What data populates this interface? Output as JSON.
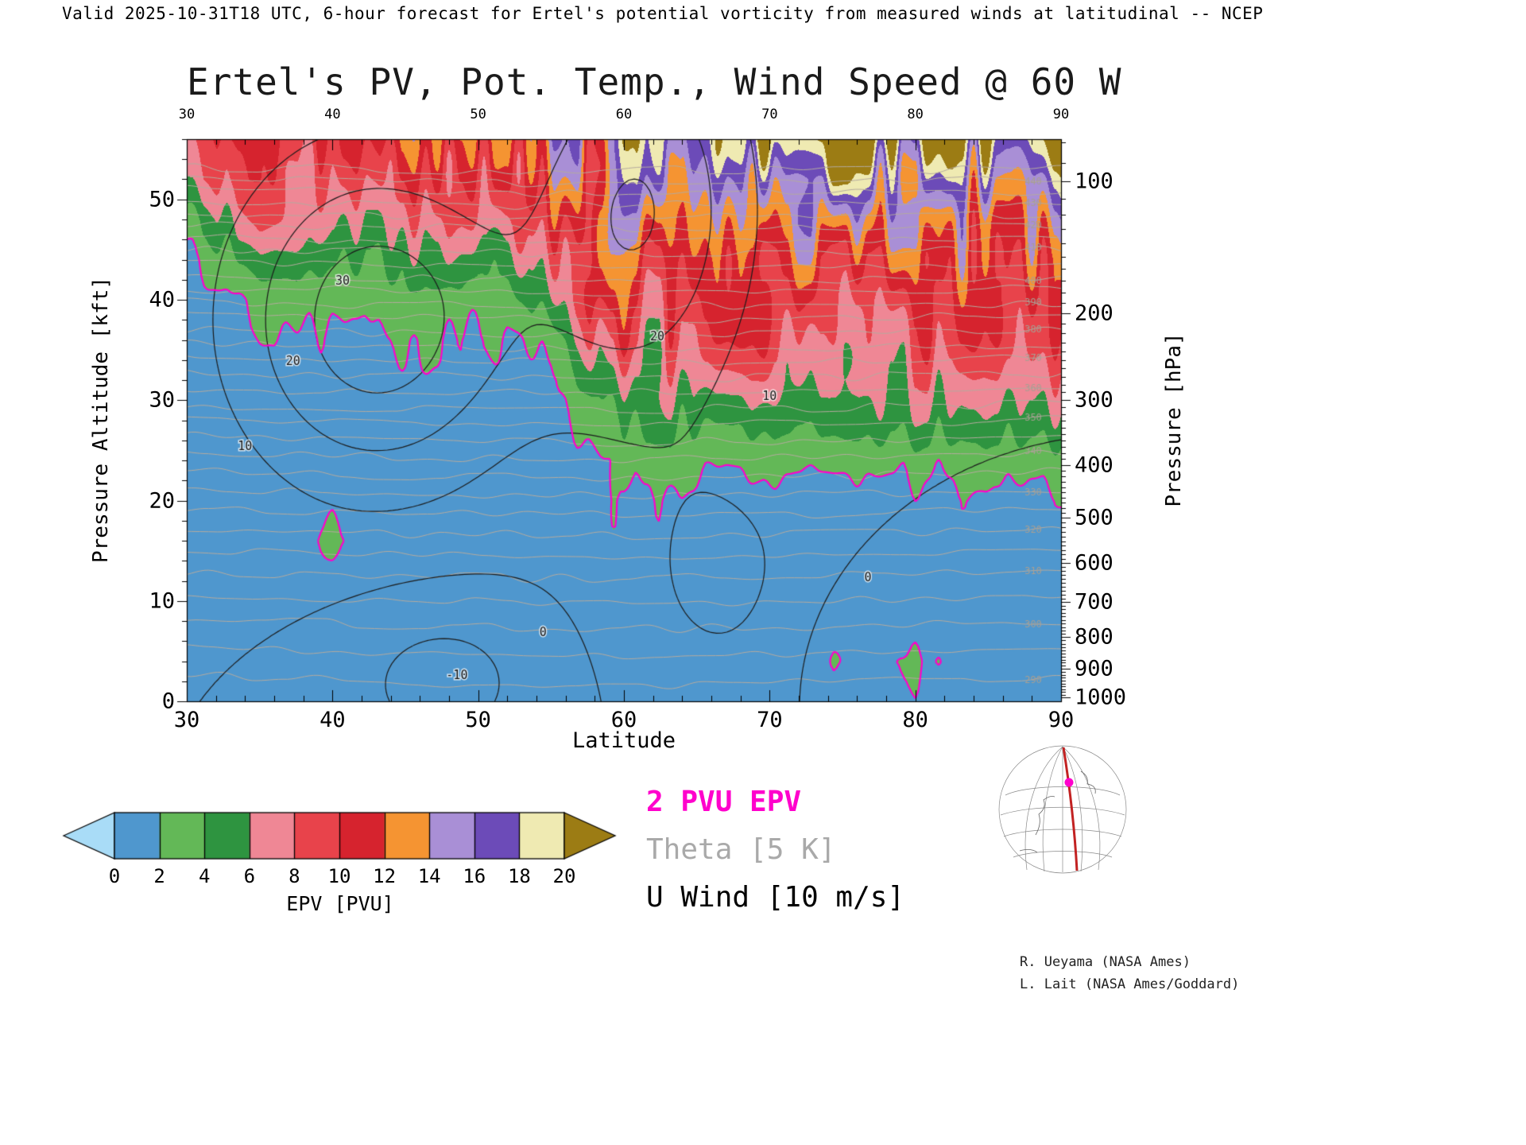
{
  "header": {
    "text": "Valid 2025-10-31T18 UTC, 6-hour forecast for Ertel's potential vorticity from measured winds at latitudinal -- NCEP"
  },
  "title": "Ertel's PV, Pot. Temp., Wind Speed @ 60 W",
  "axes": {
    "x": {
      "label": "Latitude",
      "min": 30,
      "max": 90,
      "major_ticks": [
        30,
        40,
        50,
        60,
        70,
        80,
        90
      ],
      "minor_step": 2
    },
    "y_left": {
      "label": "Pressure Altitude [kft]",
      "min": 0,
      "max": 56,
      "major_ticks": [
        0,
        10,
        20,
        30,
        40,
        50
      ],
      "minor_step": 2
    },
    "y_right": {
      "label": "Pressure [hPa]",
      "ticks": [
        100,
        200,
        300,
        400,
        500,
        600,
        700,
        800,
        900,
        1000
      ],
      "minor_step_hpa": 10
    }
  },
  "legend": [
    {
      "label": "2 PVU EPV",
      "color": "#ff00cc",
      "bold": true
    },
    {
      "label": "Theta [5 K]",
      "color": "#a9a9a9",
      "bold": false
    },
    {
      "label": "U Wind [10 m/s]",
      "color": "#000000",
      "bold": false
    }
  ],
  "credits": [
    "R. Ueyama (NASA Ames)",
    "L. Lait (NASA Ames/Goddard)"
  ],
  "colorbar": {
    "label": "EPV [PVU]",
    "values": [
      0,
      2,
      4,
      6,
      8,
      10,
      12,
      14,
      16,
      18,
      20
    ],
    "colors": [
      "#a9dcf7",
      "#4f97ce",
      "#63b857",
      "#2e9440",
      "#ef8795",
      "#e8434b",
      "#d6232e",
      "#f59432",
      "#a98fd6",
      "#6c4bb8",
      "#efeab2",
      "#9c7c14"
    ]
  },
  "chart_data": {
    "type": "heatmap",
    "title": "Ertel's PV, Pot. Temp., Wind Speed @ 60 W",
    "xlabel": "Latitude",
    "ylabel_left": "Pressure Altitude [kft]",
    "ylabel_right": "Pressure [hPa]",
    "xlim": [
      30,
      90
    ],
    "ylim_kft": [
      0,
      56
    ],
    "units": "PVU",
    "lat": [
      30,
      35,
      40,
      45,
      50,
      55,
      57.5,
      60,
      62.5,
      65,
      70,
      75,
      80,
      85,
      90
    ],
    "alt_kft": [
      0,
      4,
      8,
      12,
      16,
      20,
      24,
      28,
      32,
      36,
      40,
      44,
      48,
      52,
      56
    ],
    "epv": [
      [
        0.3,
        0.35,
        0.45,
        0.4,
        0.4,
        0.5,
        0.6,
        0.7,
        0.7,
        0.6,
        0.7,
        1.2,
        1.8,
        0.8,
        0.8
      ],
      [
        0.35,
        0.4,
        0.55,
        0.5,
        0.5,
        0.6,
        0.7,
        0.8,
        0.8,
        0.7,
        0.7,
        2.3,
        2.4,
        0.9,
        0.9
      ],
      [
        0.3,
        0.4,
        0.8,
        0.6,
        0.6,
        0.7,
        0.8,
        0.9,
        0.9,
        0.8,
        0.8,
        1.5,
        1.2,
        0.9,
        1.0
      ],
      [
        0.3,
        0.5,
        1.4,
        0.8,
        0.7,
        0.8,
        0.9,
        1.4,
        1.1,
        0.9,
        0.9,
        0.9,
        1.0,
        1.0,
        1.1
      ],
      [
        0.4,
        0.6,
        2.6,
        0.9,
        1.9,
        0.9,
        1.2,
        2.2,
        1.4,
        1.2,
        1.1,
        1.1,
        1.2,
        1.2,
        1.3
      ],
      [
        0.5,
        0.8,
        1.5,
        1.0,
        0.9,
        1.1,
        1.2,
        2.6,
        1.9,
        1.6,
        1.5,
        1.5,
        1.6,
        1.6,
        1.7
      ],
      [
        0.7,
        0.9,
        1.1,
        1.2,
        1.1,
        1.4,
        1.8,
        3.5,
        3.0,
        2.8,
        2.6,
        2.5,
        2.6,
        2.8,
        2.8
      ],
      [
        0.8,
        1.0,
        1.3,
        1.5,
        1.3,
        1.8,
        3.5,
        5.0,
        5.5,
        5.0,
        5.0,
        4.5,
        5.0,
        5.0,
        5.0
      ],
      [
        1.0,
        1.3,
        1.6,
        2.0,
        1.6,
        1.9,
        5.0,
        7.0,
        7.5,
        7.0,
        7.0,
        6.5,
        7.0,
        7.0,
        7.0
      ],
      [
        1.2,
        1.8,
        1.9,
        2.5,
        2.0,
        3.2,
        7.0,
        9.0,
        9.0,
        9.0,
        8.5,
        8.0,
        9.0,
        9.0,
        9.0
      ],
      [
        1.5,
        2.5,
        2.6,
        4.0,
        3.0,
        6.0,
        9.0,
        10,
        10,
        10,
        10,
        9.0,
        10,
        10,
        10
      ],
      [
        1.8,
        5.0,
        4.0,
        6.0,
        5.0,
        8.0,
        10,
        11,
        11,
        11,
        11,
        11,
        11,
        12,
        11
      ],
      [
        3.5,
        8.0,
        6.0,
        8.0,
        8.0,
        11,
        12,
        13,
        13,
        13,
        13,
        14,
        13,
        13,
        14
      ],
      [
        8.0,
        10,
        8.0,
        10,
        10,
        13,
        14,
        15,
        16,
        16,
        15,
        17,
        16,
        16,
        17
      ],
      [
        10,
        11,
        10,
        12,
        12,
        15,
        16,
        17,
        18,
        19,
        19,
        21,
        20,
        20,
        22
      ]
    ],
    "tropopause_contour_level_pvu": 2,
    "theta_contours": {
      "start": 290,
      "end": 445,
      "step": 5,
      "label_every": 10,
      "color": "#b5ab9f"
    },
    "uwind_contours": {
      "levels": [
        -10,
        0,
        10,
        20,
        30
      ],
      "units": "m/s",
      "color": "#1b1b1b"
    },
    "uwind_jets": [
      {
        "lat": 43,
        "alt": 38,
        "amp": 36,
        "sig_lat": 7,
        "sig_alt": 12
      },
      {
        "lat": 61,
        "alt": 49,
        "amp": 30,
        "sig_lat": 5.5,
        "sig_alt": 14
      },
      {
        "lat": 47.5,
        "alt": 2,
        "amp": -14,
        "sig_lat": 5,
        "sig_alt": 6
      },
      {
        "lat": 67,
        "alt": 12,
        "amp": 12,
        "sig_lat": 5,
        "sig_alt": 9
      },
      {
        "lat": 77,
        "alt": 5,
        "amp": -9,
        "sig_lat": 4,
        "sig_alt": 6
      }
    ],
    "contour_labels": [
      {
        "text": "30",
        "lat": 40.2,
        "alt": 41.5
      },
      {
        "text": "20",
        "lat": 36.8,
        "alt": 33.5
      },
      {
        "text": "10",
        "lat": 33.5,
        "alt": 25
      },
      {
        "text": "-10",
        "lat": 47.8,
        "alt": 2.2
      },
      {
        "text": "0",
        "lat": 54.2,
        "alt": 6.5
      },
      {
        "text": "20",
        "lat": 61.8,
        "alt": 36
      },
      {
        "text": "10",
        "lat": 69.5,
        "alt": 30
      },
      {
        "text": "0",
        "lat": 76.5,
        "alt": 12
      }
    ],
    "tropopause_color": "#ff00cc"
  }
}
